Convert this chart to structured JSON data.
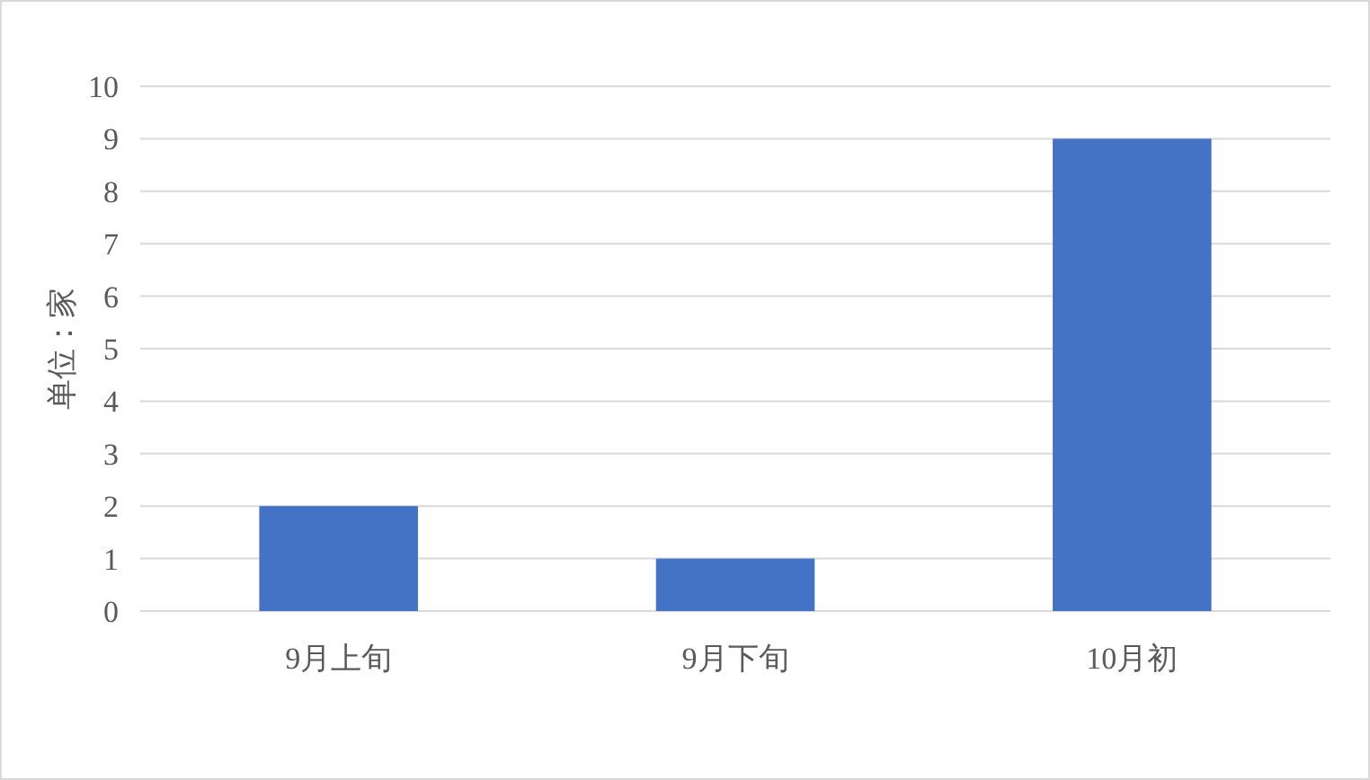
{
  "chart_data": {
    "type": "bar",
    "ylabel": "单位：家",
    "categories": [
      "9月上旬",
      "9月下旬",
      "10月初"
    ],
    "values": [
      2,
      1,
      9
    ],
    "color": "#4472c4",
    "ylim": [
      0,
      10
    ],
    "yticks": [
      0,
      1,
      2,
      3,
      4,
      5,
      6,
      7,
      8,
      9,
      10
    ],
    "grid": "y"
  }
}
